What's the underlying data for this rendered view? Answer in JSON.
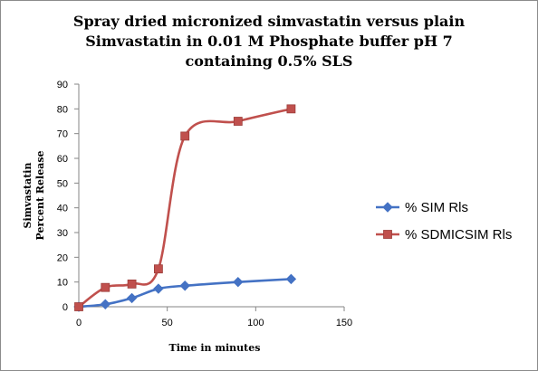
{
  "chart_data": {
    "type": "line",
    "title_lines": [
      "Spray dried micronized simvastatin versus plain",
      "Simvastatin in 0.01 M Phosphate buffer pH 7",
      "containing 0.5% SLS"
    ],
    "xlabel": "Time in minutes",
    "ylabel_lines": [
      "Simvastatin",
      "Percent Release"
    ],
    "xlim": [
      0,
      150
    ],
    "ylim": [
      0,
      90
    ],
    "x_ticks": [
      0,
      50,
      100,
      150
    ],
    "y_ticks": [
      0,
      10,
      20,
      30,
      40,
      50,
      60,
      70,
      80,
      90
    ],
    "grid": false,
    "legend_position": "right",
    "series": [
      {
        "name": "% SIM  Rls",
        "color": "#4472c4",
        "marker": "diamond",
        "x": [
          0,
          15,
          30,
          45,
          60,
          90,
          120
        ],
        "y": [
          0,
          1,
          3.5,
          7.3,
          8.5,
          10,
          11.2
        ]
      },
      {
        "name": "% SDMICSIM Rls",
        "color": "#c0504d",
        "marker": "square",
        "x": [
          0,
          15,
          30,
          45,
          60,
          90,
          120
        ],
        "y": [
          0,
          7.8,
          9.2,
          15.3,
          69,
          75,
          80
        ]
      }
    ]
  }
}
